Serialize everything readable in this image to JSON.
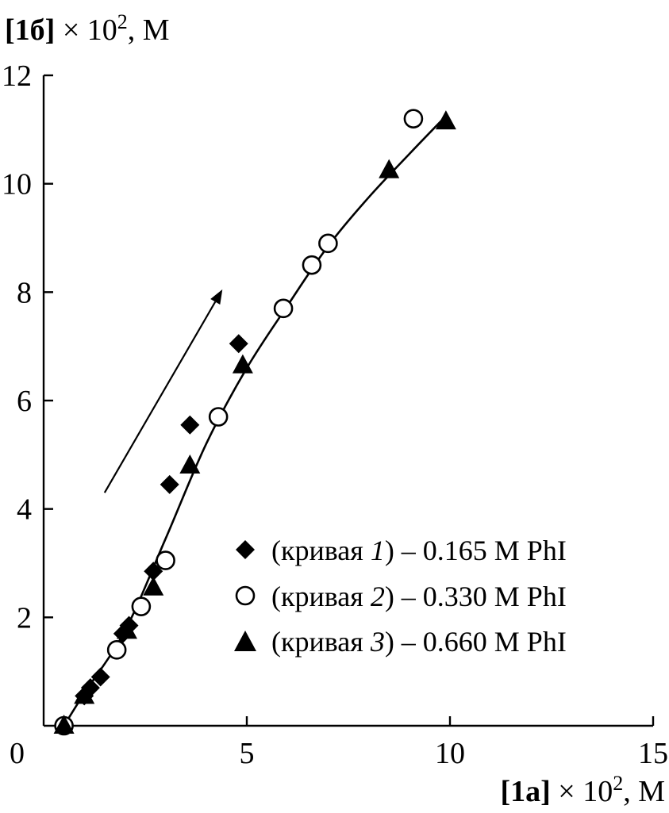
{
  "chart_data": {
    "type": "scatter",
    "xlabel": {
      "bold": "[1a]",
      "rest": " × 10",
      "sup": "2",
      "unit": ", M"
    },
    "ylabel": {
      "bold": "[1б]",
      "rest": " × 10",
      "sup": "2",
      "unit": ", M"
    },
    "xlim": [
      0,
      15
    ],
    "ylim": [
      0,
      12
    ],
    "x_ticks": [
      0,
      5,
      10,
      15
    ],
    "y_ticks": [
      2,
      4,
      6,
      8,
      10,
      12
    ],
    "x_tick_labels": [
      "0",
      "5",
      "10",
      "15"
    ],
    "y_tick_labels": [
      "2",
      "4",
      "6",
      "8",
      "10",
      "12"
    ],
    "grid": false,
    "legend_position": "lower-right",
    "series": [
      {
        "name": "(кривая 1) – 0.165 M PhI",
        "legend": {
          "pre": "(кривая ",
          "num": "1",
          "post": ") – 0.165 M PhI"
        },
        "marker": "diamond-filled",
        "points": [
          [
            0.5,
            0.0
          ],
          [
            1.0,
            0.55
          ],
          [
            1.15,
            0.7
          ],
          [
            1.4,
            0.9
          ],
          [
            1.95,
            1.7
          ],
          [
            2.1,
            1.85
          ],
          [
            2.7,
            2.85
          ],
          [
            3.1,
            4.45
          ],
          [
            3.6,
            5.55
          ],
          [
            4.8,
            7.05
          ]
        ]
      },
      {
        "name": "(кривая 2) – 0.330 M PhI",
        "legend": {
          "pre": "(кривая ",
          "num": "2",
          "post": ") – 0.330 M PhI"
        },
        "marker": "circle-open",
        "points": [
          [
            0.5,
            0.0
          ],
          [
            1.8,
            1.4
          ],
          [
            2.4,
            2.2
          ],
          [
            3.0,
            3.05
          ],
          [
            4.3,
            5.7
          ],
          [
            5.9,
            7.7
          ],
          [
            6.6,
            8.5
          ],
          [
            7.0,
            8.9
          ],
          [
            9.1,
            11.2
          ]
        ]
      },
      {
        "name": "(кривая 3) – 0.660 M PhI",
        "legend": {
          "pre": "(кривая ",
          "num": "3",
          "post": ") – 0.660 M PhI"
        },
        "marker": "triangle-filled",
        "points": [
          [
            0.5,
            0.0
          ],
          [
            1.0,
            0.55
          ],
          [
            2.05,
            1.75
          ],
          [
            2.7,
            2.55
          ],
          [
            3.6,
            4.8
          ],
          [
            4.9,
            6.65
          ],
          [
            8.5,
            10.25
          ],
          [
            9.9,
            11.15
          ]
        ]
      }
    ],
    "fit_curve": [
      [
        0.5,
        0.0
      ],
      [
        1.0,
        0.6
      ],
      [
        2.0,
        1.75
      ],
      [
        3.0,
        3.45
      ],
      [
        4.0,
        5.2
      ],
      [
        5.0,
        6.6
      ],
      [
        6.0,
        7.75
      ],
      [
        7.0,
        8.85
      ],
      [
        8.0,
        9.75
      ],
      [
        9.0,
        10.55
      ],
      [
        9.9,
        11.25
      ]
    ],
    "arrow": {
      "from": [
        1.5,
        4.3
      ],
      "to": [
        4.4,
        8.05
      ]
    }
  }
}
